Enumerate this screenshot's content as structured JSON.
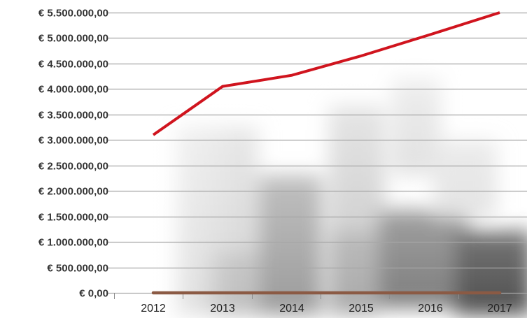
{
  "chart_data": {
    "type": "line",
    "categories": [
      "2012",
      "2013",
      "2014",
      "2015",
      "2016",
      "2017"
    ],
    "series": [
      {
        "name": "",
        "values": [
          3100000,
          4050000,
          4270000,
          4650000,
          5070000,
          5500000
        ],
        "color": "#d0141e"
      },
      {
        "name": "",
        "values": [
          0,
          0,
          0,
          0,
          0,
          0
        ],
        "color": "#8b5a44"
      }
    ],
    "yticks": [
      "€ 0,00",
      "€ 500.000,00",
      "€ 1.000.000,00",
      "€ 1.500.000,00",
      "€ 2.000.000,00",
      "€ 2.500.000,00",
      "€ 3.000.000,00",
      "€ 3.500.000,00",
      "€ 4.000.000,00",
      "€ 4.500.000,00",
      "€ 5.000.000,00",
      "€ 5.500.000,00"
    ],
    "ylim": [
      0,
      5500000
    ],
    "grid": true,
    "gridColor": "#a6a6a6",
    "title": "",
    "xlabel": "",
    "ylabel": ""
  }
}
